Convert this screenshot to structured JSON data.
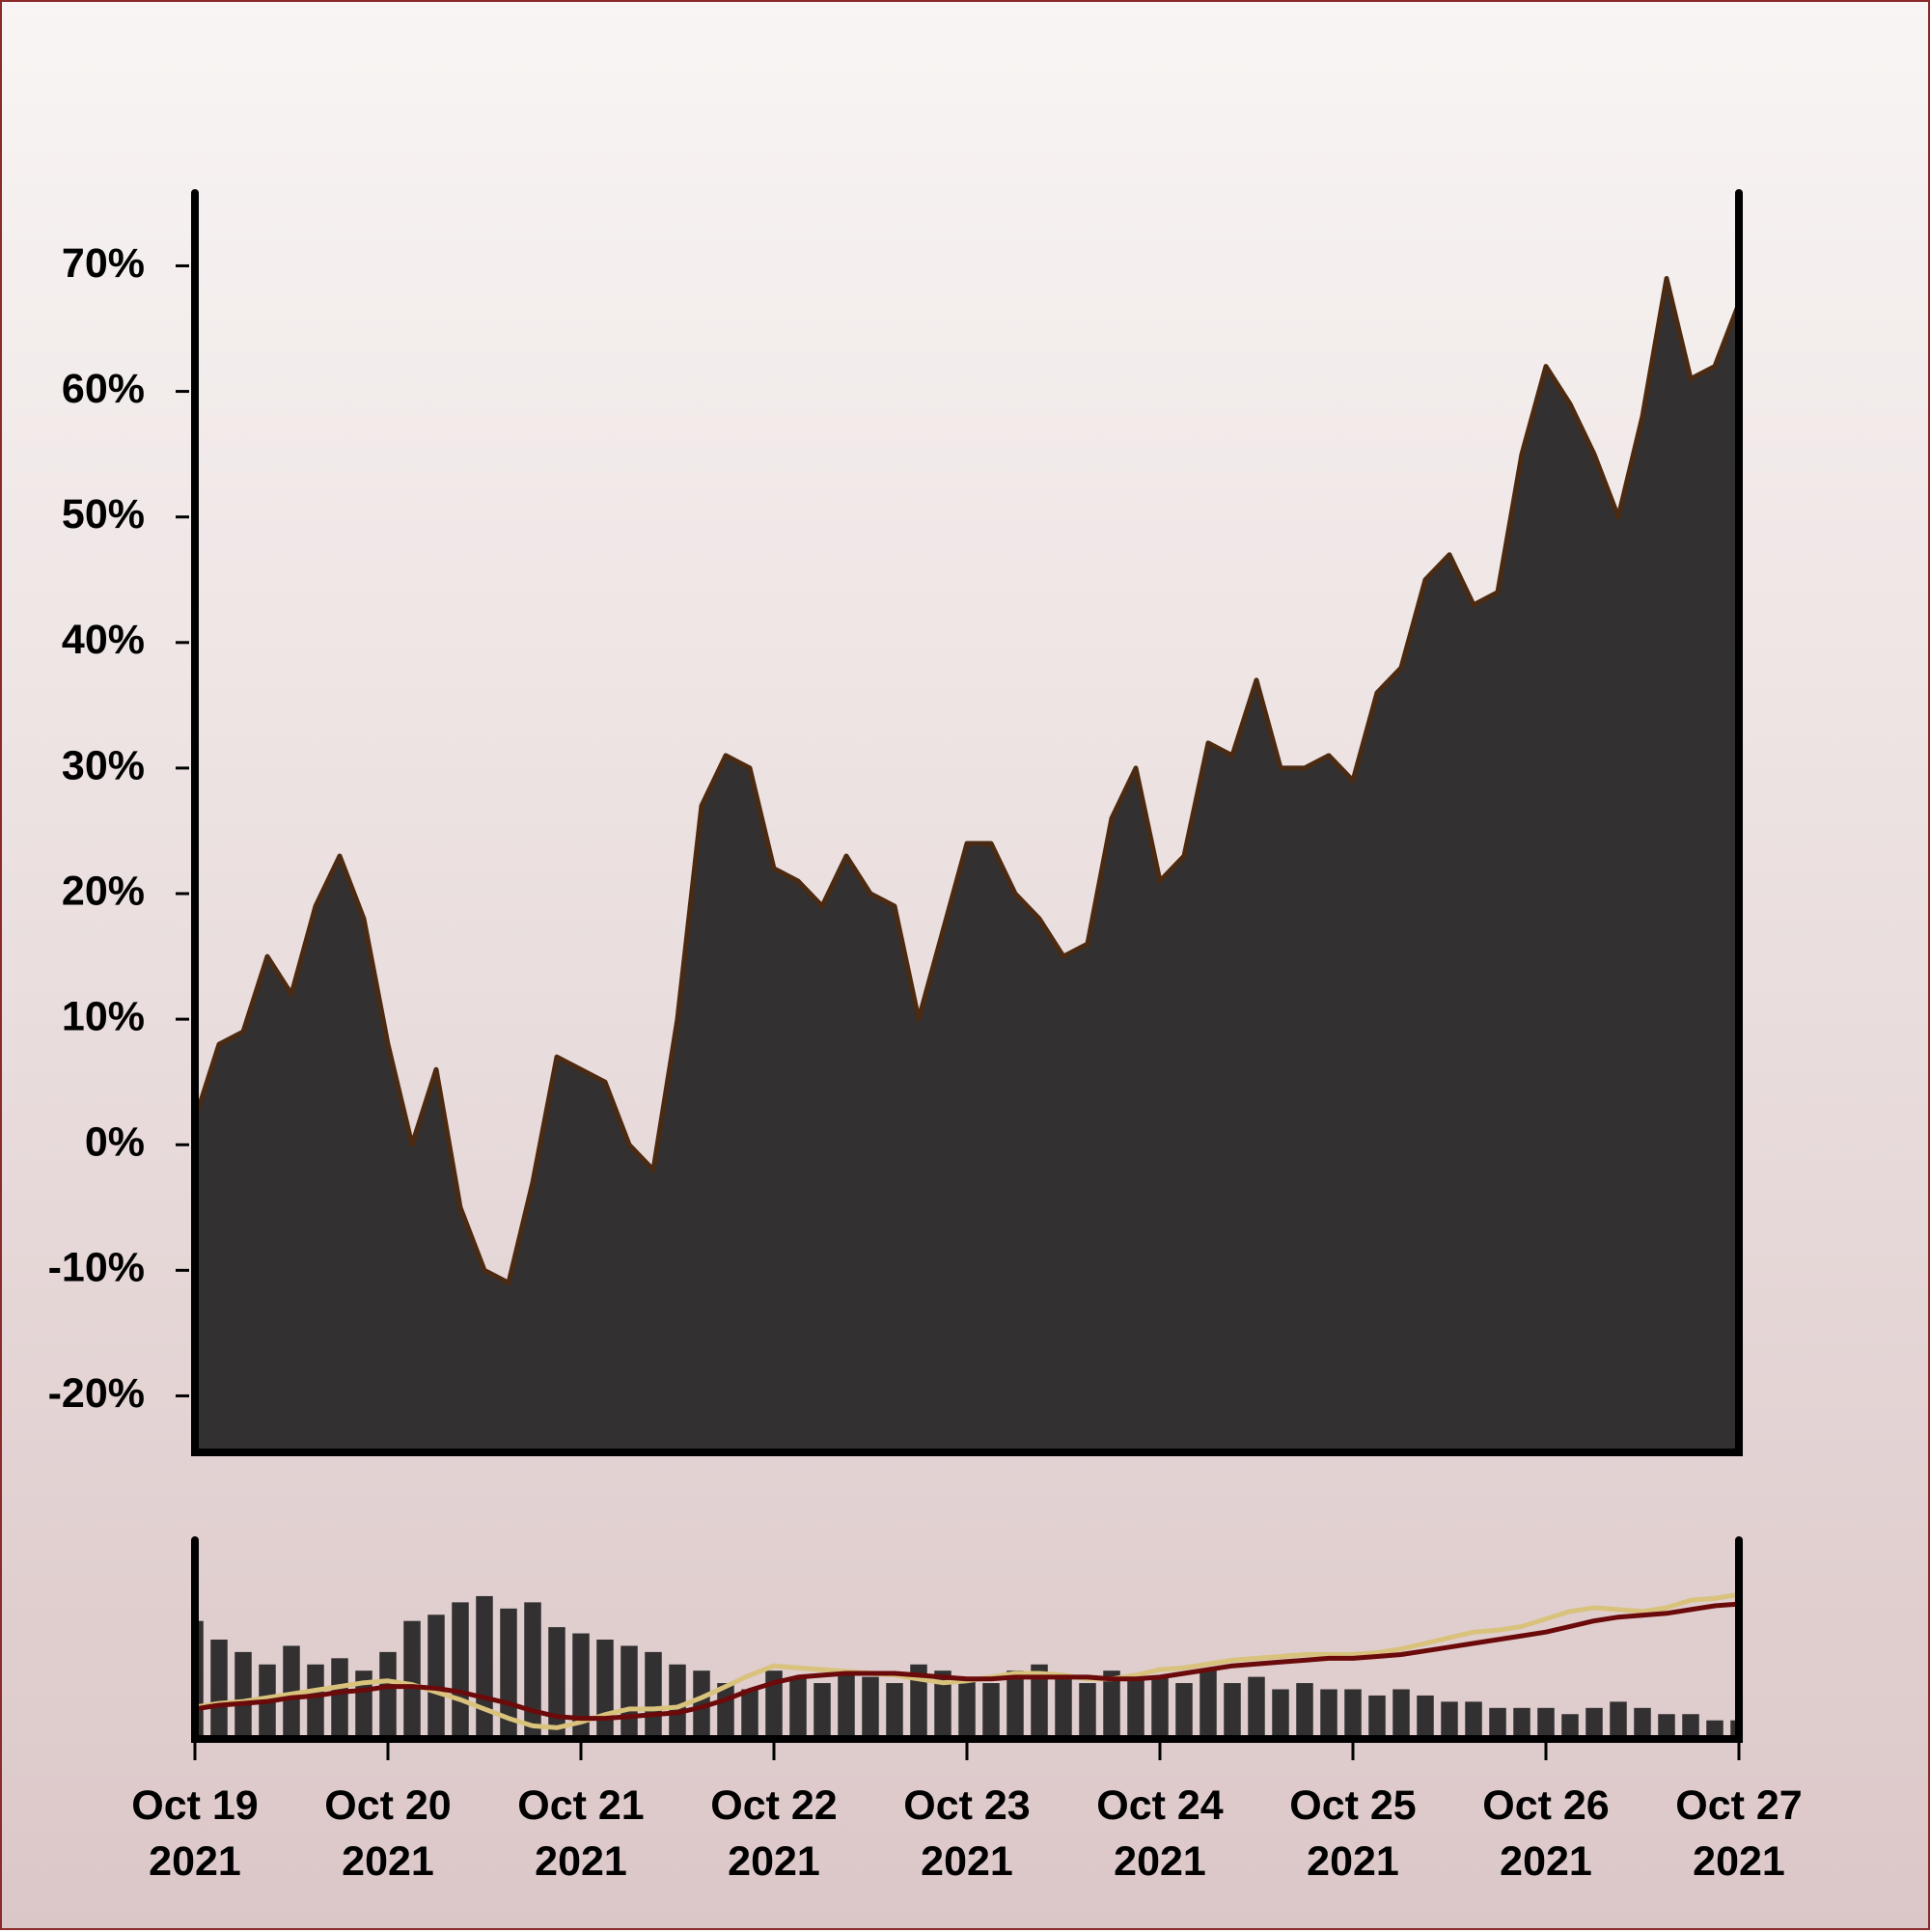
{
  "chart_data": [
    {
      "type": "area",
      "x": [
        0,
        0.125,
        0.25,
        0.375,
        0.5,
        0.625,
        0.75,
        0.875,
        1,
        1.125,
        1.25,
        1.375,
        1.5,
        1.625,
        1.75,
        1.875,
        2,
        2.125,
        2.25,
        2.375,
        2.5,
        2.625,
        2.75,
        2.875,
        3,
        3.125,
        3.25,
        3.375,
        3.5,
        3.625,
        3.75,
        3.875,
        4,
        4.125,
        4.25,
        4.375,
        4.5,
        4.625,
        4.75,
        4.875,
        5,
        5.125,
        5.25,
        5.375,
        5.5,
        5.625,
        5.75,
        5.875,
        6,
        6.125,
        6.25,
        6.375,
        6.5,
        6.625,
        6.75,
        6.875,
        7,
        7.125,
        7.25,
        7.375,
        7.5,
        7.625,
        7.75,
        7.875,
        8
      ],
      "values": [
        2,
        8,
        9,
        15,
        12,
        19,
        23,
        18,
        8,
        0,
        6,
        -5,
        -10,
        -11,
        -3,
        7,
        6,
        5,
        0,
        -2,
        10,
        27,
        31,
        30,
        22,
        21,
        19,
        23,
        20,
        19,
        10,
        17,
        24,
        24,
        20,
        18,
        15,
        16,
        26,
        30,
        21,
        23,
        32,
        31,
        37,
        30,
        30,
        31,
        29,
        36,
        38,
        45,
        47,
        43,
        44,
        55,
        62,
        59,
        55,
        50,
        58,
        69,
        61,
        62,
        67
      ],
      "color": "#323031",
      "line_color": "#4a2a12",
      "xlim": [
        0,
        8
      ],
      "ylim": [
        -24.5,
        75.8
      ],
      "yticks": [
        {
          "value": -20,
          "label": "-20%"
        },
        {
          "value": -10,
          "label": "-10%"
        },
        {
          "value": 0,
          "label": "0%"
        },
        {
          "value": 10,
          "label": "10%"
        },
        {
          "value": 20,
          "label": "20%"
        },
        {
          "value": 30,
          "label": "30%"
        },
        {
          "value": 40,
          "label": "40%"
        },
        {
          "value": 50,
          "label": "50%"
        },
        {
          "value": 60,
          "label": "60%"
        },
        {
          "value": 70,
          "label": "70%"
        }
      ]
    },
    {
      "type": "bar",
      "x": [
        0,
        0.125,
        0.25,
        0.375,
        0.5,
        0.625,
        0.75,
        0.875,
        1,
        1.125,
        1.25,
        1.375,
        1.5,
        1.625,
        1.75,
        1.875,
        2,
        2.125,
        2.25,
        2.375,
        2.5,
        2.625,
        2.75,
        2.875,
        3,
        3.125,
        3.25,
        3.375,
        3.5,
        3.625,
        3.75,
        3.875,
        4,
        4.125,
        4.25,
        4.375,
        4.5,
        4.625,
        4.75,
        4.875,
        5,
        5.125,
        5.25,
        5.375,
        5.5,
        5.625,
        5.75,
        5.875,
        6,
        6.125,
        6.25,
        6.375,
        6.5,
        6.625,
        6.75,
        6.875,
        7,
        7.125,
        7.25,
        7.375,
        7.5,
        7.625,
        7.75,
        7.875,
        8
      ],
      "series": [
        {
          "type": "bar",
          "color": "#323031",
          "values": [
            95,
            80,
            70,
            60,
            75,
            60,
            65,
            55,
            70,
            95,
            100,
            110,
            115,
            105,
            110,
            90,
            85,
            80,
            75,
            70,
            60,
            55,
            45,
            40,
            55,
            50,
            45,
            55,
            50,
            45,
            60,
            55,
            50,
            45,
            55,
            60,
            50,
            45,
            55,
            50,
            50,
            45,
            55,
            45,
            50,
            40,
            45,
            40,
            40,
            35,
            40,
            35,
            30,
            30,
            25,
            25,
            25,
            20,
            25,
            30,
            25,
            20,
            20,
            15,
            15
          ]
        },
        {
          "type": "line",
          "axis": "y2",
          "color": "#d8c27c",
          "values": [
            3,
            5,
            6,
            8,
            10,
            12,
            14,
            16,
            17,
            15,
            11,
            7,
            2,
            -3,
            -7,
            -8,
            -5,
            -1,
            2,
            2,
            3,
            8,
            14,
            20,
            25,
            24,
            23,
            22,
            21,
            20,
            18,
            16,
            17,
            19,
            21,
            21,
            20,
            18,
            18,
            20,
            23,
            24,
            26,
            28,
            29,
            30,
            31,
            31,
            31,
            32,
            34,
            37,
            40,
            43,
            44,
            46,
            50,
            54,
            56,
            55,
            54,
            56,
            60,
            61,
            63
          ]
        },
        {
          "type": "line",
          "axis": "y2",
          "color": "#6b0a0a",
          "values": [
            2,
            4,
            5,
            6,
            8,
            9,
            11,
            12,
            14,
            14,
            13,
            11,
            8,
            5,
            1,
            -2,
            -3,
            -3,
            -2,
            -1,
            0,
            3,
            7,
            12,
            16,
            19,
            20,
            21,
            21,
            21,
            20,
            19,
            18,
            18,
            19,
            19,
            19,
            19,
            18,
            18,
            19,
            21,
            23,
            25,
            26,
            27,
            28,
            29,
            29,
            30,
            31,
            33,
            35,
            37,
            39,
            41,
            43,
            46,
            49,
            51,
            52,
            53,
            55,
            57,
            58
          ]
        }
      ],
      "xlim": [
        0,
        8
      ],
      "ylim": [
        0,
        160
      ],
      "y2lim": [
        -14,
        92
      ],
      "xticks": [
        {
          "value": 0,
          "label": "Oct 19\n2021"
        },
        {
          "value": 1,
          "label": "Oct 20\n2021"
        },
        {
          "value": 2,
          "label": "Oct 21\n2021"
        },
        {
          "value": 3,
          "label": "Oct 22\n2021"
        },
        {
          "value": 4,
          "label": "Oct 23\n2021"
        },
        {
          "value": 5,
          "label": "Oct 24\n2021"
        },
        {
          "value": 6,
          "label": "Oct 25\n2021"
        },
        {
          "value": 7,
          "label": "Oct 26\n2021"
        },
        {
          "value": 8,
          "label": "Oct 27\n2021"
        }
      ]
    }
  ]
}
